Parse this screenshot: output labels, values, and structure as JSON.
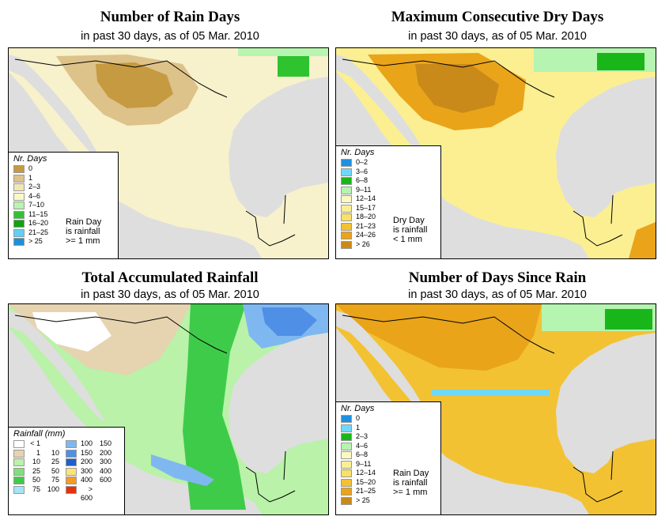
{
  "colors": {
    "land_neutral": "#fbf9c3",
    "ocean": "#dedede",
    "country_border": "#000000"
  },
  "panels": [
    {
      "id": "rain-days",
      "title": "Number of Rain Days",
      "subtitle": "in past 30 days, as of  05 Mar. 2010",
      "legend_title": "Nr. Days",
      "legend": [
        {
          "label": "0",
          "color": "#c69a40"
        },
        {
          "label": "1",
          "color": "#ddc28a"
        },
        {
          "label": "2–3",
          "color": "#f2e6b8"
        },
        {
          "label": "4–6",
          "color": "#fbf9c3"
        },
        {
          "label": "7–10",
          "color": "#b7f5b0"
        },
        {
          "label": "11–15",
          "color": "#2fc42f"
        },
        {
          "label": "16–20",
          "color": "#0fa30f"
        },
        {
          "label": "21–25",
          "color": "#5fd0f5"
        },
        {
          "label": "> 25",
          "color": "#1d8fd8"
        }
      ],
      "note": [
        "Rain Day",
        "is rainfall",
        ">= 1 mm"
      ]
    },
    {
      "id": "max-dry-days",
      "title": "Maximum Consecutive Dry Days",
      "subtitle": "in past 30 days, as of  05 Mar. 2010",
      "legend_title": "Nr. Days",
      "legend": [
        {
          "label": "0–2",
          "color": "#1e90e0"
        },
        {
          "label": "3–6",
          "color": "#6fd8f8"
        },
        {
          "label": "6–8",
          "color": "#19b619"
        },
        {
          "label": "9–11",
          "color": "#b6f4b1"
        },
        {
          "label": "12–14",
          "color": "#fbf9c3"
        },
        {
          "label": "15–17",
          "color": "#fbef92"
        },
        {
          "label": "18–20",
          "color": "#f9e068"
        },
        {
          "label": "21–23",
          "color": "#f3c233"
        },
        {
          "label": "24–26",
          "color": "#e9a41a"
        },
        {
          "label": "> 26",
          "color": "#c98a1a"
        }
      ],
      "note": [
        "Dry Day",
        "is rainfall",
        "< 1 mm"
      ]
    },
    {
      "id": "total-rainfall",
      "title": "Total Accumulated Rainfall",
      "subtitle": "in past 30 days, as of  05 Mar. 2010",
      "legend_title": "Rainfall (mm)",
      "legend_col1": [
        {
          "lo": "< 1",
          "hi": "",
          "color": "#ffffff"
        },
        {
          "lo": "1",
          "hi": "10",
          "color": "#e6d3b0"
        },
        {
          "lo": "10",
          "hi": "25",
          "color": "#b9f2a8"
        },
        {
          "lo": "25",
          "hi": "50",
          "color": "#7fe07a"
        },
        {
          "lo": "50",
          "hi": "75",
          "color": "#3fcb4a"
        },
        {
          "lo": "75",
          "hi": "100",
          "color": "#a4e4f6"
        }
      ],
      "legend_col2": [
        {
          "lo": "100",
          "hi": "150",
          "color": "#7fb8f0"
        },
        {
          "lo": "150",
          "hi": "200",
          "color": "#4f8fe6"
        },
        {
          "lo": "200",
          "hi": "300",
          "color": "#1f5fcc"
        },
        {
          "lo": "300",
          "hi": "400",
          "color": "#fbe27a"
        },
        {
          "lo": "400",
          "hi": "600",
          "color": "#f79a20"
        },
        {
          "lo": "> 600",
          "hi": "",
          "color": "#e8300a"
        }
      ]
    },
    {
      "id": "days-since-rain",
      "title": "Number of Days Since Rain",
      "subtitle": "in past 30 days, as of  05 Mar. 2010",
      "legend_title": "Nr. Days",
      "legend": [
        {
          "label": "0",
          "color": "#1e90e0"
        },
        {
          "label": "1",
          "color": "#6fd8f8"
        },
        {
          "label": "2–3",
          "color": "#19b619"
        },
        {
          "label": "4–6",
          "color": "#b6f4b1"
        },
        {
          "label": "6–8",
          "color": "#fbf9c3"
        },
        {
          "label": "9–11",
          "color": "#fbef92"
        },
        {
          "label": "12–14",
          "color": "#f9e068"
        },
        {
          "label": "15–20",
          "color": "#f3c233"
        },
        {
          "label": "21–25",
          "color": "#e9a41a"
        },
        {
          "label": "> 25",
          "color": "#c98a1a"
        }
      ],
      "note": [
        "Rain Day",
        "is rainfall",
        ">= 1 mm"
      ]
    }
  ]
}
